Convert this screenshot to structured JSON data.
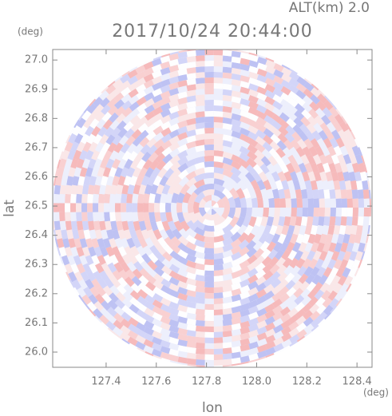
{
  "chart_data": {
    "type": "radar-ppi",
    "title": "2017/10/24 20:44:00",
    "subtitle": "ALT(km) 2.0",
    "x_label": "lon",
    "y_label": "lat",
    "x_unit": "(deg)",
    "y_unit": "(deg)",
    "xlim": [
      127.187,
      128.46
    ],
    "ylim": [
      25.948,
      27.036
    ],
    "xticks": [
      127.4,
      127.6,
      127.8,
      {
        "value": 128,
        "label": "128.0"
      },
      128.2,
      128.4
    ],
    "yticks": [
      {
        "value": 26,
        "label": "26.0"
      },
      26.1,
      26.2,
      26.3,
      26.4,
      26.5,
      26.6,
      26.7,
      26.8,
      26.9,
      {
        "value": 27,
        "label": "27.0"
      }
    ]
  }
}
